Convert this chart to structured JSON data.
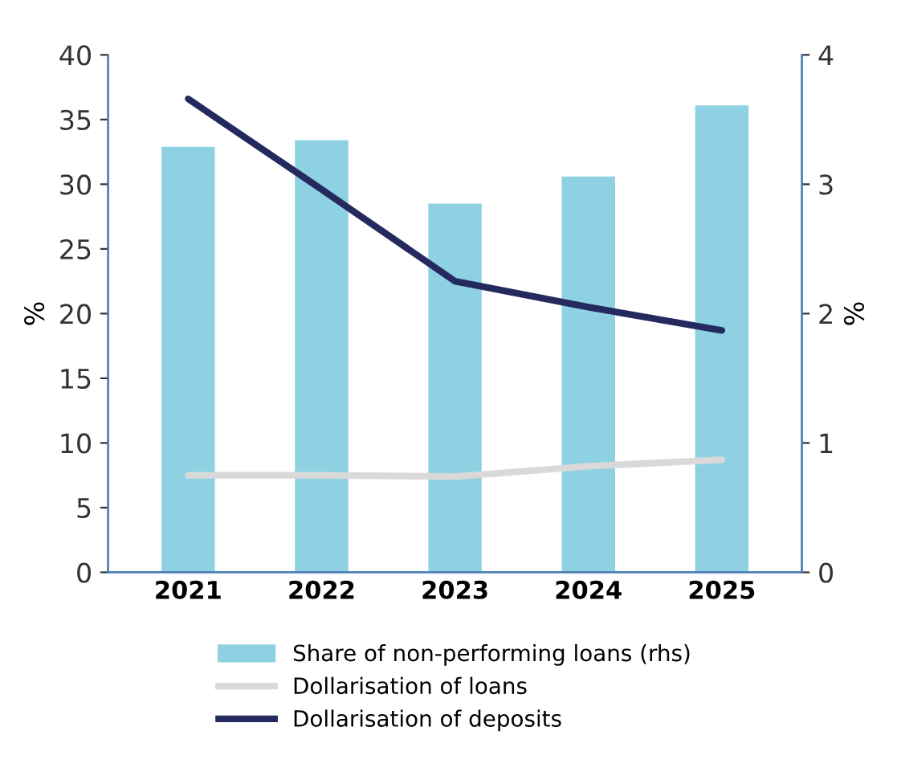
{
  "chart_data": {
    "type": "bar",
    "categories": [
      "2021",
      "2022",
      "2023",
      "2024",
      "2025"
    ],
    "ylabel": "%",
    "y2label": "%",
    "ylim": [
      0,
      40
    ],
    "yticks": [
      0,
      5,
      10,
      15,
      20,
      25,
      30,
      35,
      40
    ],
    "y2lim": [
      0,
      4
    ],
    "y2ticks": [
      0,
      1,
      2,
      3,
      4
    ],
    "grid": false,
    "legend": "bottom",
    "marker": "none",
    "series": [
      {
        "name": "Share of non-performing loans (rhs)",
        "axis": "y2",
        "color": "#8ed1e3",
        "values": [
          3.29,
          3.34,
          2.85,
          3.06,
          3.61
        ]
      },
      {
        "name": "Dollarisation of loans",
        "type": "line",
        "color": "#d9d9d9",
        "values": [
          7.5,
          7.5,
          7.4,
          8.2,
          8.7
        ]
      },
      {
        "name": "Dollarisation of deposits",
        "type": "line",
        "color": "#252a5e",
        "values": [
          36.6,
          29.6,
          22.5,
          20.5,
          18.7
        ]
      }
    ]
  }
}
